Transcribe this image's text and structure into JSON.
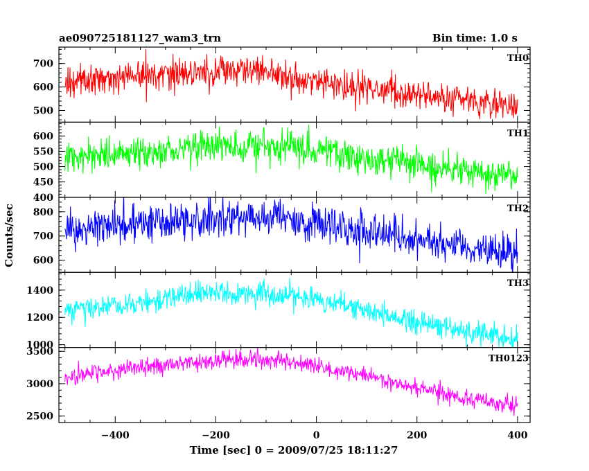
{
  "header": {
    "title": "ae090725181127_wam3_trn",
    "bin_time": "Bin time: 1.0 s"
  },
  "chart_data": {
    "type": "line",
    "title": "ae090725181127_wam3_trn",
    "xlabel": "Time [sec] 0 = 2009/07/25 18:11:27",
    "ylabel": "Counts/sec",
    "xlim": [
      -512,
      425
    ],
    "x_ticks": [
      -400,
      -200,
      0,
      200,
      400
    ],
    "x_tick_labels": [
      "−400",
      "−200",
      "0",
      "200",
      "400"
    ],
    "x_sample_step": 1,
    "x_range": [
      -500,
      400
    ],
    "panels": [
      {
        "name": "TH0",
        "color": "#ff0000",
        "ylim": [
          450,
          770
        ],
        "yticks": [
          500,
          600,
          700
        ],
        "trend_x": [
          -500,
          -400,
          -300,
          -200,
          -100,
          0,
          100,
          200,
          300,
          400
        ],
        "trend_y": [
          615,
          640,
          655,
          665,
          660,
          625,
          595,
          570,
          545,
          510
        ],
        "noise": 32
      },
      {
        "name": "TH1",
        "color": "#00ff00",
        "ylim": [
          400,
          645
        ],
        "yticks": [
          400,
          450,
          500,
          550,
          600
        ],
        "trend_x": [
          -500,
          -400,
          -300,
          -200,
          -100,
          0,
          100,
          200,
          300,
          400
        ],
        "trend_y": [
          525,
          540,
          550,
          565,
          570,
          560,
          530,
          505,
          485,
          460
        ],
        "noise": 27
      },
      {
        "name": "TH2",
        "color": "#0000ff",
        "ylim": [
          550,
          860
        ],
        "yticks": [
          600,
          700,
          800
        ],
        "trend_x": [
          -500,
          -400,
          -300,
          -200,
          -100,
          0,
          100,
          200,
          300,
          400
        ],
        "trend_y": [
          720,
          735,
          750,
          770,
          775,
          755,
          715,
          680,
          655,
          630
        ],
        "noise": 38
      },
      {
        "name": "TH3",
        "color": "#00ffff",
        "ylim": [
          980,
          1530
        ],
        "yticks": [
          1000,
          1200,
          1400
        ],
        "trend_x": [
          -500,
          -400,
          -300,
          -200,
          -100,
          0,
          100,
          200,
          300,
          400
        ],
        "trend_y": [
          1250,
          1290,
          1340,
          1375,
          1380,
          1320,
          1240,
          1170,
          1100,
          1050
        ],
        "noise": 45
      },
      {
        "name": "TH0123",
        "color": "#ff00ff",
        "ylim": [
          2400,
          3560
        ],
        "yticks": [
          2500,
          3000,
          3500
        ],
        "trend_x": [
          -500,
          -400,
          -300,
          -200,
          -100,
          0,
          100,
          200,
          300,
          400
        ],
        "trend_y": [
          3100,
          3200,
          3300,
          3370,
          3380,
          3280,
          3110,
          2930,
          2780,
          2640
        ],
        "noise": 65
      }
    ]
  }
}
